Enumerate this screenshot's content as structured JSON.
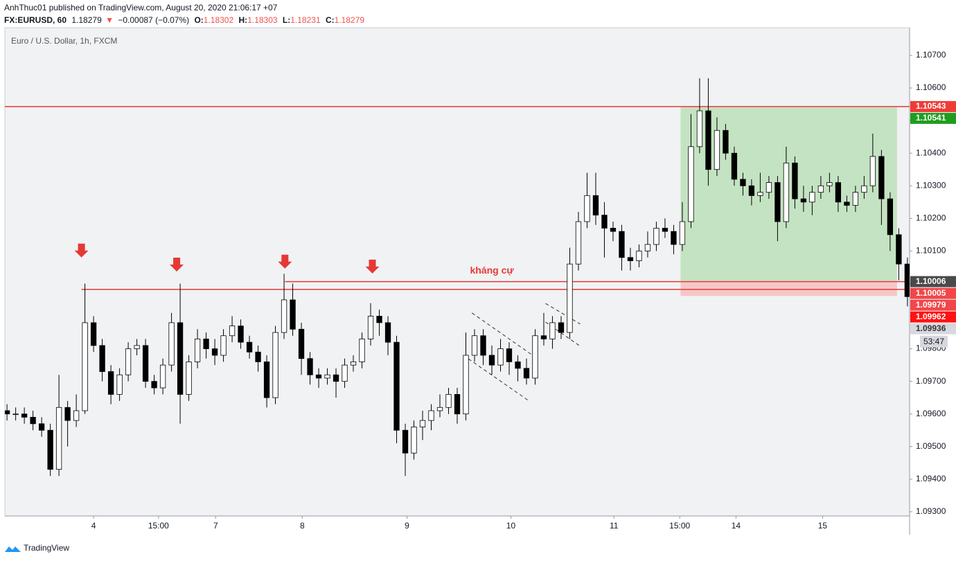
{
  "header": {
    "author_line": "AnhThuc01 published on TradingView.com, August 20, 2020 21:06:17 +07",
    "symbol": "FX:EURUSD, 60",
    "last": "1.18279",
    "change_arrow": "▼",
    "change": "−0.00087 (−0.07%)",
    "ohlc": [
      {
        "label": "O:",
        "value": "1.18302"
      },
      {
        "label": "H:",
        "value": "1.18303"
      },
      {
        "label": "L:",
        "value": "1.18231"
      },
      {
        "label": "C:",
        "value": "1.18279"
      }
    ]
  },
  "chart_data": {
    "type": "candlestick",
    "title": "Euro / U.S. Dollar, 1h, FXCM",
    "up_color": "#ffffff",
    "down_color": "#000000",
    "grid": false,
    "xlim": [
      -0.25,
      104.25
    ],
    "xticks": [
      {
        "value": 10,
        "label": "4"
      },
      {
        "value": 17.5,
        "label": "15:00"
      },
      {
        "value": 24.1,
        "label": "7"
      },
      {
        "value": 34.1,
        "label": "8"
      },
      {
        "value": 46.2,
        "label": "9"
      },
      {
        "value": 58.2,
        "label": "10"
      },
      {
        "value": 70.1,
        "label": "11"
      },
      {
        "value": 77.7,
        "label": "15:00"
      },
      {
        "value": 84.2,
        "label": "14"
      },
      {
        "value": 94.2,
        "label": "15"
      }
    ],
    "ylim": [
      1.09287,
      1.10785
    ],
    "yticks": [
      {
        "value": 1.093,
        "label": "1.09300"
      },
      {
        "value": 1.094,
        "label": "1.09400"
      },
      {
        "value": 1.095,
        "label": "1.09500"
      },
      {
        "value": 1.096,
        "label": "1.09600"
      },
      {
        "value": 1.097,
        "label": "1.09700"
      },
      {
        "value": 1.098,
        "label": "1.09800"
      },
      {
        "value": 1.099,
        "label": "1.09900"
      },
      {
        "value": 1.1,
        "label": "1.10000"
      },
      {
        "value": 1.101,
        "label": "1.10100"
      },
      {
        "value": 1.102,
        "label": "1.10200"
      },
      {
        "value": 1.103,
        "label": "1.10300"
      },
      {
        "value": 1.104,
        "label": "1.10400"
      },
      {
        "value": 1.105,
        "label": "1.10500"
      },
      {
        "value": 1.106,
        "label": "1.10600"
      },
      {
        "value": 1.107,
        "label": "1.10700"
      }
    ],
    "open": [
      1.0961,
      1.096,
      1.096,
      1.0959,
      1.0957,
      1.0955,
      1.0943,
      1.0962,
      1.0958,
      1.0961,
      1.0988,
      1.0981,
      1.0973,
      1.0966,
      1.0972,
      1.098,
      1.0981,
      1.097,
      1.0968,
      1.0975,
      1.0988,
      1.0966,
      1.0976,
      1.0983,
      1.098,
      1.0978,
      1.0984,
      1.0987,
      1.0982,
      1.0979,
      1.0976,
      1.0965,
      1.0985,
      1.0995,
      1.0986,
      1.0977,
      1.0972,
      1.0971,
      1.0972,
      1.097,
      1.0975,
      1.0976,
      1.0983,
      1.099,
      1.0988,
      1.0982,
      1.0955,
      1.0948,
      1.0956,
      1.0958,
      1.0961,
      1.0962,
      1.0966,
      1.096,
      1.0978,
      1.0984,
      1.0978,
      1.0975,
      1.098,
      1.0976,
      1.0974,
      1.0971,
      1.0984,
      1.0983,
      1.0988,
      1.0985,
      1.1006,
      1.1019,
      1.1027,
      1.1021,
      1.1017,
      1.1016,
      1.1008,
      1.1007,
      1.101,
      1.1012,
      1.1017,
      1.1016,
      1.1012,
      1.1019,
      1.1042,
      1.1053,
      1.1035,
      1.1047,
      1.104,
      1.1032,
      1.103,
      1.1027,
      1.1028,
      1.1031,
      1.1019,
      1.1037,
      1.1026,
      1.1025,
      1.1028,
      1.103,
      1.1031,
      1.1025,
      1.1024,
      1.1028,
      1.103,
      1.1039,
      1.1026,
      1.1015,
      1.1006
    ],
    "high": [
      1.0963,
      1.0962,
      1.0962,
      1.0961,
      1.0959,
      1.0957,
      1.0972,
      1.0964,
      1.0966,
      1.1,
      1.099,
      1.0983,
      1.0975,
      1.0974,
      1.0982,
      1.0983,
      1.0983,
      1.0972,
      1.0977,
      1.0991,
      1.1,
      1.0978,
      1.0986,
      1.0985,
      1.0983,
      1.0986,
      1.099,
      1.0989,
      1.0984,
      1.0981,
      1.0978,
      1.0987,
      1.1003,
      1.1,
      1.0988,
      1.0979,
      1.0974,
      1.0974,
      1.0974,
      1.0977,
      1.0978,
      1.0985,
      1.0994,
      1.0992,
      1.099,
      1.0984,
      1.0957,
      1.0958,
      1.0961,
      1.0963,
      1.0966,
      1.0968,
      1.0968,
      1.0985,
      1.0986,
      1.0986,
      1.0981,
      1.0983,
      1.0982,
      1.0978,
      1.0977,
      1.0986,
      1.0991,
      1.099,
      1.099,
      1.1011,
      1.1022,
      1.1034,
      1.1034,
      1.1025,
      1.1019,
      1.1018,
      1.1011,
      1.1012,
      1.1016,
      1.1019,
      1.102,
      1.1018,
      1.1025,
      1.1052,
      1.1063,
      1.1063,
      1.1051,
      1.1049,
      1.1042,
      1.1034,
      1.1032,
      1.1034,
      1.1033,
      1.1033,
      1.1042,
      1.1039,
      1.103,
      1.103,
      1.1033,
      1.1034,
      1.1033,
      1.1027,
      1.103,
      1.1033,
      1.1046,
      1.1041,
      1.1028,
      1.1017,
      1.1008
    ],
    "low": [
      1.0958,
      1.0958,
      1.0957,
      1.0955,
      1.0953,
      1.0941,
      1.0941,
      1.095,
      1.0956,
      1.096,
      1.0979,
      1.097,
      1.0963,
      1.0964,
      1.097,
      1.0978,
      1.0968,
      1.0966,
      1.0966,
      1.0973,
      1.0957,
      1.0964,
      1.0974,
      1.0977,
      1.0975,
      1.0976,
      1.0982,
      1.098,
      1.0977,
      1.0973,
      1.0962,
      1.0963,
      1.0983,
      1.0984,
      1.0972,
      1.0969,
      1.0968,
      1.0969,
      1.0965,
      1.0968,
      1.0973,
      1.0974,
      1.0981,
      1.0984,
      1.0978,
      1.0951,
      1.0941,
      1.0946,
      1.0952,
      1.0955,
      1.0959,
      1.096,
      1.0957,
      1.0958,
      1.0976,
      1.0975,
      1.0972,
      1.0973,
      1.0972,
      1.097,
      1.0969,
      1.0969,
      1.0981,
      1.098,
      1.0983,
      1.0983,
      1.1004,
      1.1017,
      1.1018,
      1.1008,
      1.1013,
      1.1004,
      1.1004,
      1.1005,
      1.1008,
      1.101,
      1.1014,
      1.1009,
      1.101,
      1.1017,
      1.104,
      1.103,
      1.1033,
      1.1038,
      1.103,
      1.1027,
      1.1024,
      1.1025,
      1.1026,
      1.1013,
      1.1017,
      1.1023,
      1.1022,
      1.1021,
      1.1026,
      1.1028,
      1.1022,
      1.1022,
      1.1022,
      1.1026,
      1.1028,
      1.1018,
      1.101,
      1.1001,
      1.0993
    ],
    "close": [
      1.096,
      1.096,
      1.0959,
      1.0957,
      1.0955,
      1.0943,
      1.0962,
      1.0958,
      1.0961,
      1.0988,
      1.0981,
      1.0973,
      1.0966,
      1.0972,
      1.098,
      1.0981,
      1.097,
      1.0968,
      1.0975,
      1.0988,
      1.0966,
      1.0976,
      1.0983,
      1.098,
      1.0978,
      1.0984,
      1.0987,
      1.0982,
      1.0979,
      1.0976,
      1.0965,
      1.0985,
      1.0995,
      1.0986,
      1.0977,
      1.0972,
      1.0971,
      1.0972,
      1.097,
      1.0975,
      1.0976,
      1.0983,
      1.099,
      1.0988,
      1.0982,
      1.0955,
      1.0948,
      1.0956,
      1.0958,
      1.0961,
      1.0962,
      1.0966,
      1.096,
      1.0978,
      1.0984,
      1.0978,
      1.0975,
      1.098,
      1.0976,
      1.0974,
      1.0971,
      1.0984,
      1.0983,
      1.0988,
      1.0985,
      1.1006,
      1.1019,
      1.1027,
      1.1021,
      1.1017,
      1.1016,
      1.1008,
      1.1007,
      1.101,
      1.1012,
      1.1017,
      1.1016,
      1.1012,
      1.1019,
      1.1042,
      1.1053,
      1.1035,
      1.1047,
      1.104,
      1.1032,
      1.103,
      1.1027,
      1.1028,
      1.1031,
      1.1019,
      1.1037,
      1.1026,
      1.1025,
      1.1028,
      1.103,
      1.1031,
      1.1025,
      1.1024,
      1.1028,
      1.103,
      1.1039,
      1.1026,
      1.1015,
      1.1006,
      1.0996
    ],
    "hlines": [
      {
        "value": 1.10543,
        "from": -0.25,
        "color": "#e53935"
      },
      {
        "value": 1.10006,
        "from": 32.1,
        "color": "#e53935"
      },
      {
        "value": 1.09982,
        "from": 8.6,
        "color": "#e53935"
      }
    ],
    "position": {
      "start": 77.8,
      "end": 102.8,
      "target": 1.10541,
      "entry": 1.10006,
      "stop": 1.09962,
      "profit_color": "#c4e3c2",
      "loss_color": "#f6c7c8"
    },
    "arrows": [
      {
        "x": 8.6,
        "y": 1.1008,
        "color": "#e53935"
      },
      {
        "x": 19.6,
        "y": 1.10037,
        "color": "#e53935"
      },
      {
        "x": 32.1,
        "y": 1.10046,
        "color": "#e53935"
      },
      {
        "x": 42.2,
        "y": 1.10031,
        "color": "#e53935"
      }
    ],
    "annotations": [
      {
        "text": "kháng cự",
        "x": 56,
        "y": 1.10039,
        "color": "#e53935"
      }
    ],
    "trendlines": [
      {
        "points": [
          [
            53.7,
            1.0991
          ],
          [
            60.6,
            1.09782
          ]
        ]
      },
      {
        "points": [
          [
            53.3,
            1.09769
          ],
          [
            60.4,
            1.09638
          ]
        ]
      },
      {
        "points": [
          [
            62.2,
            1.09939
          ],
          [
            66.2,
            1.09876
          ]
        ]
      },
      {
        "points": [
          [
            62.2,
            1.09882
          ],
          [
            66.2,
            1.09808
          ]
        ]
      }
    ],
    "price_tags": [
      {
        "value": 1.10543,
        "label": "1.10543",
        "color": "#ef3b36"
      },
      {
        "value": 1.10541,
        "label": "1.10541",
        "color": "#1f9d1f"
      },
      {
        "value": 1.10006,
        "label": "1.10006",
        "color": "#4a4a4a"
      },
      {
        "value": 1.10005,
        "label": "1.10005",
        "color": "#f0474a"
      },
      {
        "value": 1.09979,
        "label": "1.09979",
        "color": "#f0474a"
      },
      {
        "value": 1.09962,
        "label": "1.09962",
        "color": "#ff1212"
      },
      {
        "value": 1.09936,
        "label": "1.09936",
        "color": "#d6d8de",
        "text_color": "#333333"
      }
    ],
    "countdown": "53:47"
  },
  "footer": {
    "brand": "TradingView"
  }
}
